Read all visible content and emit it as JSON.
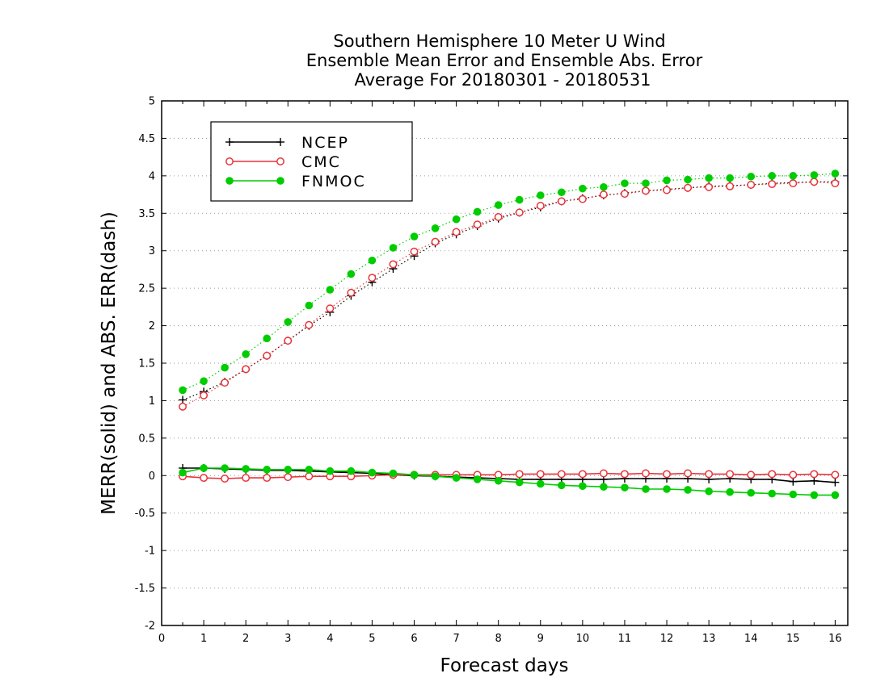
{
  "chart_data": {
    "type": "line",
    "title": [
      "Southern Hemisphere 10 Meter U Wind",
      "Ensemble Mean Error and Ensemble Abs. Error",
      "Average For 20180301 - 20180531"
    ],
    "xlabel": "Forecast days",
    "ylabel": "MERR(solid) and ABS. ERR(dash)",
    "xlim": [
      0,
      16.3
    ],
    "ylim": [
      -2,
      5
    ],
    "xticks": [
      0,
      1,
      2,
      3,
      4,
      5,
      6,
      7,
      8,
      9,
      10,
      11,
      12,
      13,
      14,
      15,
      16
    ],
    "yticks": [
      -2,
      -1.5,
      -1,
      -0.5,
      0,
      0.5,
      1,
      1.5,
      2,
      2.5,
      3,
      3.5,
      4,
      4.5,
      5
    ],
    "ytick_labels": [
      "-2",
      "-1.5",
      "-1",
      "-0.5",
      "0",
      "0.5",
      "1",
      "1.5",
      "2",
      "2.5",
      "3",
      "3.5",
      "4",
      "4.5",
      "5"
    ],
    "grid": "horizontal dotted",
    "legend_position": "top-left",
    "x": [
      0.5,
      1,
      1.5,
      2,
      2.5,
      3,
      3.5,
      4,
      4.5,
      5,
      5.5,
      6,
      6.5,
      7,
      7.5,
      8,
      8.5,
      9,
      9.5,
      10,
      10.5,
      11,
      11.5,
      12,
      12.5,
      13,
      13.5,
      14,
      14.5,
      15,
      15.5,
      16
    ],
    "series": [
      {
        "name": "NCEP",
        "color": "#000000",
        "marker": "plus",
        "merr": [
          0.1,
          0.1,
          0.09,
          0.08,
          0.07,
          0.07,
          0.06,
          0.05,
          0.04,
          0.03,
          0.01,
          0.0,
          -0.01,
          -0.02,
          -0.03,
          -0.04,
          -0.05,
          -0.05,
          -0.05,
          -0.05,
          -0.05,
          -0.04,
          -0.04,
          -0.04,
          -0.04,
          -0.05,
          -0.04,
          -0.05,
          -0.05,
          -0.08,
          -0.07,
          -0.09
        ],
        "abs_err": [
          1.01,
          1.12,
          1.25,
          1.42,
          1.6,
          1.8,
          2.0,
          2.18,
          2.4,
          2.58,
          2.76,
          2.93,
          3.1,
          3.22,
          3.33,
          3.43,
          3.51,
          3.58,
          3.66,
          3.7,
          3.74,
          3.77,
          3.8,
          3.82,
          3.84,
          3.86,
          3.87,
          3.88,
          3.9,
          3.91,
          3.92,
          3.92
        ]
      },
      {
        "name": "CMC",
        "color": "#e8343a",
        "marker": "open-circle",
        "merr": [
          -0.01,
          -0.03,
          -0.04,
          -0.03,
          -0.03,
          -0.02,
          -0.01,
          -0.01,
          -0.01,
          0.0,
          0.01,
          0.01,
          0.01,
          0.01,
          0.01,
          0.01,
          0.02,
          0.02,
          0.02,
          0.02,
          0.03,
          0.02,
          0.03,
          0.02,
          0.03,
          0.02,
          0.02,
          0.01,
          0.02,
          0.01,
          0.02,
          0.01
        ],
        "abs_err": [
          0.92,
          1.07,
          1.24,
          1.42,
          1.6,
          1.8,
          2.01,
          2.23,
          2.44,
          2.64,
          2.82,
          2.99,
          3.12,
          3.25,
          3.35,
          3.45,
          3.51,
          3.6,
          3.66,
          3.69,
          3.75,
          3.76,
          3.8,
          3.81,
          3.84,
          3.85,
          3.86,
          3.88,
          3.89,
          3.9,
          3.92,
          3.9
        ]
      },
      {
        "name": "FNMOC",
        "color": "#00cc00",
        "marker": "filled-circle",
        "merr": [
          0.04,
          0.1,
          0.1,
          0.09,
          0.08,
          0.08,
          0.08,
          0.06,
          0.06,
          0.04,
          0.03,
          0.01,
          -0.01,
          -0.03,
          -0.05,
          -0.07,
          -0.09,
          -0.11,
          -0.13,
          -0.14,
          -0.15,
          -0.16,
          -0.18,
          -0.18,
          -0.19,
          -0.21,
          -0.22,
          -0.23,
          -0.24,
          -0.25,
          -0.26,
          -0.26
        ],
        "abs_err": [
          1.14,
          1.26,
          1.44,
          1.62,
          1.83,
          2.05,
          2.27,
          2.48,
          2.69,
          2.87,
          3.04,
          3.19,
          3.3,
          3.42,
          3.52,
          3.61,
          3.68,
          3.74,
          3.78,
          3.83,
          3.85,
          3.9,
          3.9,
          3.94,
          3.95,
          3.97,
          3.97,
          3.99,
          4.0,
          4.0,
          4.01,
          4.03
        ]
      }
    ]
  }
}
